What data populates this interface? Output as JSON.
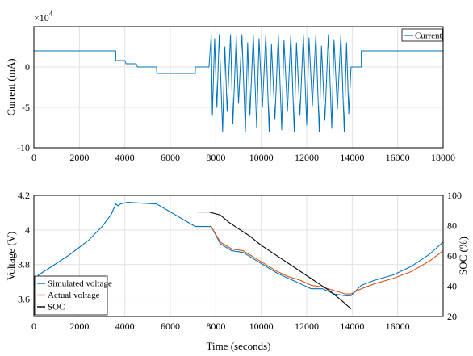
{
  "chart_data": [
    {
      "type": "line",
      "xlabel": "",
      "ylabel": "Current (mA)",
      "xlim": [
        0,
        18000
      ],
      "ylim": [
        -100000,
        50000
      ],
      "y_exponent_label": "×10",
      "y_exponent_power": "4",
      "xticks": [
        "0",
        "2000",
        "4000",
        "6000",
        "8000",
        "10000",
        "12000",
        "14000",
        "16000",
        "18000"
      ],
      "yticks": [
        "-10",
        "-5",
        "0"
      ],
      "grid": true,
      "legend_position": "top-right",
      "series": [
        {
          "name": "Current",
          "color": "#0072BD",
          "points": [
            [
              0,
              20000
            ],
            [
              3600,
              20000
            ],
            [
              3600,
              8000
            ],
            [
              4000,
              8000
            ],
            [
              4050,
              4000
            ],
            [
              4500,
              4000
            ],
            [
              4550,
              0
            ],
            [
              5400,
              0
            ],
            [
              5400,
              -8000
            ],
            [
              7100,
              -8000
            ],
            [
              7100,
              0
            ],
            [
              7700,
              0
            ],
            [
              7800,
              40000
            ],
            [
              7850,
              -60000
            ],
            [
              7950,
              35000
            ],
            [
              8050,
              -50000
            ],
            [
              8150,
              40000
            ],
            [
              8300,
              -80000
            ],
            [
              8400,
              25000
            ],
            [
              8500,
              -55000
            ],
            [
              8650,
              40000
            ],
            [
              8750,
              -70000
            ],
            [
              8900,
              38000
            ],
            [
              9000,
              -45000
            ],
            [
              9150,
              40000
            ],
            [
              9300,
              -80000
            ],
            [
              9400,
              30000
            ],
            [
              9500,
              -60000
            ],
            [
              9650,
              40000
            ],
            [
              9800,
              -75000
            ],
            [
              9900,
              35000
            ],
            [
              10050,
              -50000
            ],
            [
              10200,
              40000
            ],
            [
              10350,
              -80000
            ],
            [
              10450,
              28000
            ],
            [
              10600,
              -65000
            ],
            [
              10750,
              40000
            ],
            [
              10900,
              -78000
            ],
            [
              11000,
              33000
            ],
            [
              11150,
              -55000
            ],
            [
              11300,
              40000
            ],
            [
              11450,
              -80000
            ],
            [
              11550,
              30000
            ],
            [
              11700,
              -60000
            ],
            [
              11850,
              40000
            ],
            [
              12000,
              -72000
            ],
            [
              12100,
              36000
            ],
            [
              12250,
              -48000
            ],
            [
              12400,
              40000
            ],
            [
              12550,
              -80000
            ],
            [
              12650,
              26000
            ],
            [
              12800,
              -66000
            ],
            [
              12950,
              40000
            ],
            [
              13100,
              -76000
            ],
            [
              13200,
              34000
            ],
            [
              13350,
              -52000
            ],
            [
              13500,
              40000
            ],
            [
              13650,
              -80000
            ],
            [
              13750,
              30000
            ],
            [
              13850,
              -58000
            ],
            [
              13950,
              0
            ],
            [
              14400,
              0
            ],
            [
              14400,
              20000
            ],
            [
              18000,
              20000
            ]
          ]
        }
      ]
    },
    {
      "type": "line",
      "xlabel": "Time (seconds)",
      "ylabel": "Voltage (V)",
      "ylabel_right": "SOC (%)",
      "xlim": [
        0,
        18000
      ],
      "ylim": [
        3.5,
        4.2
      ],
      "ylim_right": [
        20,
        100
      ],
      "xticks": [
        "0",
        "2000",
        "4000",
        "6000",
        "8000",
        "10000",
        "12000",
        "14000",
        "16000"
      ],
      "yticks": [
        "3.6",
        "3.8",
        "4",
        "4.2"
      ],
      "yticks_right": [
        "20",
        "40",
        "60",
        "80",
        "100"
      ],
      "grid": true,
      "legend_position": "bottom-left",
      "series": [
        {
          "name": "Simulated voltage",
          "color": "#0072BD",
          "axis": "left",
          "points": [
            [
              0,
              3.68
            ],
            [
              200,
              3.74
            ],
            [
              800,
              3.79
            ],
            [
              1600,
              3.86
            ],
            [
              2400,
              3.94
            ],
            [
              3000,
              4.02
            ],
            [
              3400,
              4.09
            ],
            [
              3600,
              4.15
            ],
            [
              3700,
              4.14
            ],
            [
              3800,
              4.15
            ],
            [
              4100,
              4.16
            ],
            [
              5400,
              4.15
            ],
            [
              7100,
              4.02
            ],
            [
              7800,
              4.02
            ],
            [
              8200,
              3.92
            ],
            [
              8700,
              3.88
            ],
            [
              9200,
              3.87
            ],
            [
              9700,
              3.83
            ],
            [
              10200,
              3.79
            ],
            [
              10700,
              3.75
            ],
            [
              11200,
              3.72
            ],
            [
              11700,
              3.69
            ],
            [
              12200,
              3.66
            ],
            [
              12700,
              3.66
            ],
            [
              13200,
              3.63
            ],
            [
              13700,
              3.62
            ],
            [
              13950,
              3.62
            ],
            [
              14400,
              3.68
            ],
            [
              15000,
              3.71
            ],
            [
              15800,
              3.74
            ],
            [
              16600,
              3.79
            ],
            [
              17400,
              3.86
            ],
            [
              18000,
              3.93
            ]
          ]
        },
        {
          "name": "Actual voltage",
          "color": "#D95319",
          "axis": "left",
          "points": [
            [
              7800,
              4.02
            ],
            [
              8200,
              3.93
            ],
            [
              8700,
              3.89
            ],
            [
              9200,
              3.88
            ],
            [
              9700,
              3.84
            ],
            [
              10200,
              3.8
            ],
            [
              10700,
              3.76
            ],
            [
              11200,
              3.73
            ],
            [
              11700,
              3.71
            ],
            [
              12200,
              3.68
            ],
            [
              12700,
              3.67
            ],
            [
              13200,
              3.65
            ],
            [
              13700,
              3.63
            ],
            [
              13950,
              3.63
            ],
            [
              14400,
              3.66
            ],
            [
              15000,
              3.69
            ],
            [
              15800,
              3.72
            ],
            [
              16600,
              3.76
            ],
            [
              17400,
              3.82
            ],
            [
              18000,
              3.88
            ]
          ]
        },
        {
          "name": "SOC",
          "color": "#000000",
          "axis": "right",
          "points": [
            [
              7200,
              89
            ],
            [
              7700,
              89
            ],
            [
              8200,
              87
            ],
            [
              8600,
              82
            ],
            [
              9000,
              78
            ],
            [
              9500,
              73
            ],
            [
              10000,
              67
            ],
            [
              10500,
              62
            ],
            [
              11000,
              57
            ],
            [
              11500,
              52
            ],
            [
              12000,
              47
            ],
            [
              12500,
              42
            ],
            [
              13000,
              37
            ],
            [
              13500,
              31
            ],
            [
              13950,
              25
            ]
          ]
        }
      ]
    }
  ]
}
